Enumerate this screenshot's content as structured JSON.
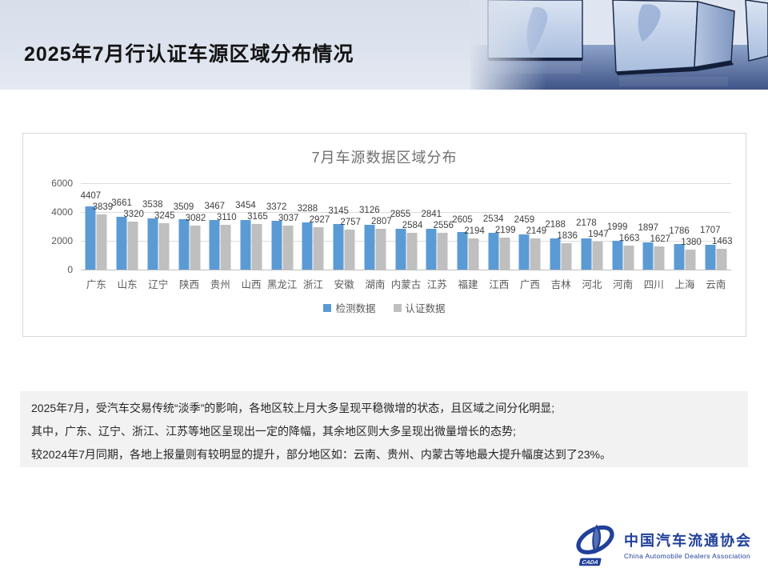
{
  "header": {
    "title": "2025年7月行认证车源区域分布情况"
  },
  "chart_data": {
    "type": "bar",
    "title": "7月车源数据区域分布",
    "categories": [
      "广东",
      "山东",
      "辽宁",
      "陕西",
      "贵州",
      "山西",
      "黑龙江",
      "浙江",
      "安徽",
      "湖南",
      "内蒙古",
      "江苏",
      "福建",
      "江西",
      "广西",
      "吉林",
      "河北",
      "河南",
      "四川",
      "上海",
      "云南"
    ],
    "series": [
      {
        "name": "检测数据",
        "color": "#5B9BD5",
        "values": [
          4407,
          3661,
          3538,
          3509,
          3467,
          3454,
          3372,
          3288,
          3145,
          3126,
          2855,
          2841,
          2605,
          2534,
          2459,
          2188,
          2178,
          1999,
          1897,
          1786,
          1707
        ]
      },
      {
        "name": "认证数据",
        "color": "#BFBFBF",
        "values": [
          3839,
          3320,
          3245,
          3082,
          3110,
          3165,
          3037,
          2927,
          2757,
          2807,
          2584,
          2556,
          2194,
          2199,
          2149,
          1836,
          1947,
          1663,
          1627,
          1380,
          1463
        ]
      }
    ],
    "ylim": [
      0,
      6000
    ],
    "yticks": [
      0,
      2000,
      4000,
      6000
    ],
    "grid": true,
    "legend_position": "bottom"
  },
  "summary": {
    "lines": [
      "2025年7月，受汽车交易传统“淡季”的影响，各地区较上月大多呈现平稳微增的状态，且区域之间分化明显;",
      "其中，广东、辽宁、浙江、江苏等地区呈现出一定的降幅，其余地区则大多呈现出微量增长的态势;",
      "较2024年7月同期，各地上报量则有较明显的提升，部分地区如：云南、贵州、内蒙古等地最大提升幅度达到了23%。"
    ]
  },
  "footer": {
    "org_cn": "中国汽车流通协会",
    "org_en": "China Automobile Dealers Association",
    "logo_acronym": "CADA"
  }
}
